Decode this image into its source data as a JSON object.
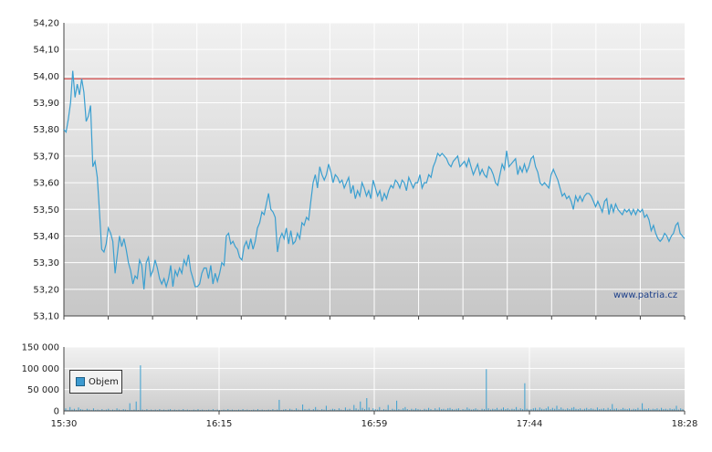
{
  "chart_data": [
    {
      "type": "line",
      "title": "",
      "xlabel": "",
      "ylabel": "",
      "ylim": [
        53.1,
        54.2
      ],
      "yticks": [
        "54,20",
        "54,10",
        "54,00",
        "53,90",
        "53,80",
        "53,70",
        "53,60",
        "53,50",
        "53,40",
        "53,30",
        "53,20",
        "53,10"
      ],
      "xticks": [
        "15:30",
        "16:15",
        "16:59",
        "17:44",
        "18:28"
      ],
      "reference_line": 53.99,
      "reference_color": "#cc2222",
      "line_color": "#3a9fd0",
      "grid": true,
      "series": [
        {
          "values": [
            53.8,
            53.79,
            53.84,
            53.9,
            54.02,
            53.92,
            53.97,
            53.93,
            53.99,
            53.94,
            53.83,
            53.85,
            53.89,
            53.66,
            53.68,
            53.62,
            53.49,
            53.35,
            53.34,
            53.37,
            53.43,
            53.41,
            53.38,
            53.26,
            53.33,
            53.4,
            53.36,
            53.39,
            53.35,
            53.3,
            53.27,
            53.22,
            53.25,
            53.24,
            53.31,
            53.29,
            53.2,
            53.3,
            53.32,
            53.25,
            53.27,
            53.31,
            53.28,
            53.24,
            53.22,
            53.24,
            53.21,
            53.24,
            53.29,
            53.21,
            53.27,
            53.25,
            53.28,
            53.26,
            53.31,
            53.29,
            53.33,
            53.27,
            53.24,
            53.21,
            53.21,
            53.22,
            53.26,
            53.28,
            53.28,
            53.24,
            53.29,
            53.22,
            53.26,
            53.23,
            53.26,
            53.3,
            53.29,
            53.4,
            53.41,
            53.37,
            53.38,
            53.36,
            53.35,
            53.32,
            53.31,
            53.36,
            53.38,
            53.35,
            53.39,
            53.35,
            53.38,
            53.43,
            53.45,
            53.49,
            53.48,
            53.52,
            53.56,
            53.5,
            53.49,
            53.47,
            53.34,
            53.39,
            53.41,
            53.39,
            53.43,
            53.37,
            53.42,
            53.37,
            53.38,
            53.41,
            53.39,
            53.45,
            53.44,
            53.47,
            53.46,
            53.53,
            53.6,
            53.63,
            53.58,
            53.66,
            53.63,
            53.61,
            53.63,
            53.67,
            53.64,
            53.6,
            53.63,
            53.62,
            53.6,
            53.61,
            53.58,
            53.6,
            53.62,
            53.56,
            53.59,
            53.54,
            53.57,
            53.55,
            53.6,
            53.58,
            53.55,
            53.57,
            53.54,
            53.61,
            53.58,
            53.55,
            53.57,
            53.53,
            53.56,
            53.54,
            53.57,
            53.59,
            53.58,
            53.61,
            53.6,
            53.58,
            53.61,
            53.6,
            53.57,
            53.62,
            53.6,
            53.58,
            53.6,
            53.6,
            53.63,
            53.58,
            53.6,
            53.6,
            53.63,
            53.62,
            53.66,
            53.68,
            53.71,
            53.7,
            53.71,
            53.7,
            53.69,
            53.67,
            53.66,
            53.68,
            53.69,
            53.7,
            53.66,
            53.67,
            53.68,
            53.66,
            53.69,
            53.66,
            53.63,
            53.65,
            53.67,
            53.63,
            53.65,
            53.63,
            53.62,
            53.66,
            53.65,
            53.63,
            53.6,
            53.59,
            53.63,
            53.67,
            53.65,
            53.72,
            53.66,
            53.67,
            53.68,
            53.69,
            53.63,
            53.66,
            53.64,
            53.67,
            53.64,
            53.66,
            53.69,
            53.7,
            53.66,
            53.64,
            53.6,
            53.59,
            53.6,
            53.59,
            53.58,
            53.63,
            53.65,
            53.63,
            53.61,
            53.58,
            53.55,
            53.56,
            53.54,
            53.55,
            53.53,
            53.5,
            53.55,
            53.53,
            53.55,
            53.53,
            53.55,
            53.56,
            53.56,
            53.55,
            53.53,
            53.51,
            53.53,
            53.51,
            53.49,
            53.53,
            53.54,
            53.48,
            53.52,
            53.49,
            53.52,
            53.5,
            53.49,
            53.48,
            53.5,
            53.49,
            53.5,
            53.48,
            53.5,
            53.48,
            53.5,
            53.49,
            53.5,
            53.47,
            53.48,
            53.46,
            53.42,
            53.44,
            53.41,
            53.39,
            53.38,
            53.39,
            53.41,
            53.4,
            53.38,
            53.4,
            53.41,
            53.44,
            53.45,
            53.41,
            53.4,
            53.39
          ]
        }
      ]
    },
    {
      "type": "bar",
      "title": "",
      "ylim": [
        0,
        150000
      ],
      "yticks": [
        "150 000",
        "100 000",
        "50 000",
        "0"
      ],
      "xticks": [
        "15:30",
        "16:15",
        "16:59",
        "17:44",
        "18:28"
      ],
      "legend": "Objem",
      "legend_position": "left",
      "bar_color": "#3a9fd0",
      "series": [
        {
          "name": "Objem",
          "values": [
            6000,
            2000,
            9000,
            3000,
            5000,
            2000,
            8000,
            4000,
            3000,
            2000,
            5000,
            3000,
            2000,
            6000,
            2000,
            3000,
            2000,
            4000,
            2000,
            3000,
            5000,
            2000,
            3000,
            2000,
            6000,
            3000,
            2000,
            4000,
            3000,
            2000,
            18000,
            2000,
            3000,
            22000,
            2000,
            107000,
            3000,
            2000,
            4000,
            2000,
            3000,
            2000,
            3000,
            2000,
            4000,
            2000,
            3000,
            2000,
            3000,
            4000,
            2000,
            3000,
            2000,
            3000,
            2000,
            4000,
            2000,
            3000,
            2000,
            2000,
            3000,
            2000,
            4000,
            2000,
            3000,
            2000,
            2000,
            3000,
            2000,
            4000,
            2000,
            3000,
            2000,
            2000,
            3000,
            2000,
            4000,
            2000,
            3000,
            2000,
            2000,
            3000,
            2000,
            4000,
            2000,
            3000,
            2000,
            2000,
            3000,
            2000,
            4000,
            2000,
            3000,
            2000,
            2000,
            3000,
            2000,
            4000,
            2000,
            3000,
            26000,
            2000,
            3000,
            4000,
            2000,
            5000,
            3000,
            2000,
            6000,
            3000,
            2000,
            15000,
            4000,
            3000,
            5000,
            2000,
            4000,
            9000,
            3000,
            2000,
            4000,
            3000,
            12000,
            2000,
            3000,
            5000,
            4000,
            2000,
            6000,
            3000,
            2000,
            8000,
            3000,
            5000,
            2000,
            14000,
            6000,
            3000,
            22000,
            7000,
            4000,
            30000,
            8000,
            2000,
            6000,
            4000,
            3000,
            9000,
            2000,
            4000,
            3000,
            14000,
            2000,
            5000,
            3000,
            24000,
            4000,
            3000,
            6000,
            9000,
            4000,
            2000,
            5000,
            3000,
            6000,
            4000,
            3000,
            2000,
            5000,
            3000,
            7000,
            4000,
            2000,
            6000,
            3000,
            8000,
            4000,
            5000,
            3000,
            6000,
            7000,
            4000,
            3000,
            5000,
            6000,
            2000,
            4000,
            3000,
            8000,
            5000,
            3000,
            4000,
            6000,
            3000,
            2000,
            5000,
            4000,
            98000,
            6000,
            3000,
            5000,
            4000,
            7000,
            3000,
            5000,
            8000,
            4000,
            6000,
            3000,
            5000,
            4000,
            9000,
            3000,
            6000,
            4000,
            65000,
            5000,
            3000,
            4000,
            6000,
            7000,
            3000,
            8000,
            5000,
            4000,
            6000,
            10000,
            4000,
            7000,
            5000,
            12000,
            4000,
            8000,
            5000,
            3000,
            6000,
            4000,
            7000,
            9000,
            5000,
            4000,
            6000,
            3000,
            5000,
            7000,
            4000,
            6000,
            5000,
            3000,
            8000,
            4000,
            5000,
            6000,
            3000,
            7000,
            4000,
            16000,
            5000,
            6000,
            3000,
            4000,
            7000,
            5000,
            4000,
            6000,
            3000,
            5000,
            4000,
            7000,
            3000,
            18000,
            5000,
            4000,
            6000,
            3000,
            5000,
            4000,
            6000,
            3000,
            7000,
            4000,
            5000,
            3000,
            6000,
            4000,
            5000,
            12000,
            3000,
            6000,
            4000
          ]
        }
      ]
    }
  ],
  "watermark": "www.patria.cz",
  "legend_label": "Objem"
}
